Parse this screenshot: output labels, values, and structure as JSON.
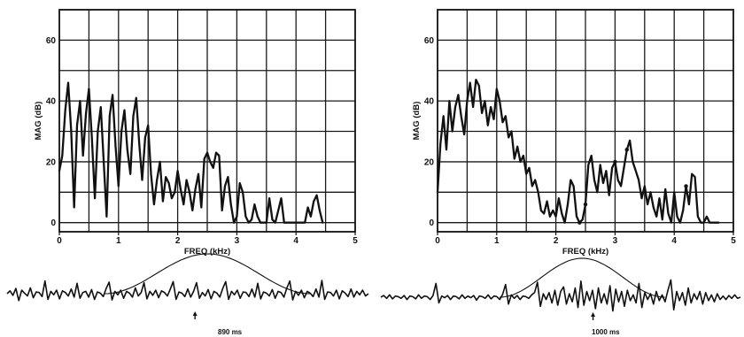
{
  "chart_data": [
    {
      "type": "line",
      "xlabel": "FREQ (kHz)",
      "ylabel": "MAG (dB)",
      "xlim": [
        0,
        5
      ],
      "ylim": [
        -3,
        70
      ],
      "x_ticks": [
        "0",
        "1",
        "2",
        "3",
        "4",
        "5"
      ],
      "y_ticks": [
        "0",
        "20",
        "40",
        "60"
      ],
      "grid": true,
      "series": [
        {
          "x": [
            0,
            0.05,
            0.1,
            0.15,
            0.2,
            0.25,
            0.3,
            0.35,
            0.4,
            0.45,
            0.5,
            0.55,
            0.6,
            0.65,
            0.7,
            0.75,
            0.8,
            0.85,
            0.9,
            0.95,
            1.0,
            1.05,
            1.1,
            1.15,
            1.2,
            1.25,
            1.3,
            1.35,
            1.4,
            1.45,
            1.5,
            1.55,
            1.6,
            1.65,
            1.7,
            1.75,
            1.8,
            1.85,
            1.9,
            1.95,
            2.0,
            2.05,
            2.1,
            2.15,
            2.2,
            2.25,
            2.3,
            2.35,
            2.4,
            2.45,
            2.5,
            2.55,
            2.6,
            2.65,
            2.7,
            2.75,
            2.8,
            2.85,
            2.9,
            2.95,
            3.0,
            3.05,
            3.1,
            3.15,
            3.2,
            3.25,
            3.3,
            3.35,
            3.4,
            3.45,
            3.5,
            3.55,
            3.6,
            3.65,
            3.7,
            3.75,
            3.8,
            3.85,
            3.9,
            3.95,
            4.0,
            4.05,
            4.1,
            4.15,
            4.2,
            4.25,
            4.3,
            4.35,
            4.4,
            4.45
          ],
          "y": [
            17,
            22,
            37,
            46,
            30,
            5,
            32,
            40,
            22,
            36,
            44,
            28,
            8,
            30,
            38,
            20,
            2,
            35,
            42,
            25,
            12,
            30,
            37,
            24,
            16,
            35,
            41,
            26,
            14,
            28,
            32,
            16,
            6,
            14,
            20,
            7,
            15,
            13,
            8,
            10,
            17,
            11,
            6,
            14,
            10,
            4,
            11,
            16,
            5,
            21,
            23,
            20,
            18,
            23,
            22,
            4,
            12,
            15,
            6,
            0,
            2,
            13,
            10,
            2,
            0,
            1,
            6,
            2,
            0,
            0,
            0,
            8,
            1,
            0,
            4,
            8,
            0,
            0,
            0,
            0,
            0,
            0,
            0,
            0,
            5,
            2,
            7,
            9,
            4,
            0
          ]
        }
      ],
      "time_marker": "890 ms"
    },
    {
      "type": "line",
      "xlabel": "FREQ (kHz)",
      "ylabel": "MAG (dB)",
      "xlim": [
        0,
        5
      ],
      "ylim": [
        -3,
        70
      ],
      "x_ticks": [
        "0",
        "1",
        "2",
        "3",
        "4",
        "5"
      ],
      "y_ticks": [
        "0",
        "20",
        "40",
        "60"
      ],
      "grid": true,
      "series": [
        {
          "x": [
            0,
            0.05,
            0.1,
            0.15,
            0.2,
            0.25,
            0.3,
            0.35,
            0.4,
            0.45,
            0.5,
            0.55,
            0.6,
            0.65,
            0.7,
            0.75,
            0.8,
            0.85,
            0.9,
            0.95,
            1.0,
            1.05,
            1.1,
            1.15,
            1.2,
            1.25,
            1.3,
            1.35,
            1.4,
            1.45,
            1.5,
            1.55,
            1.6,
            1.65,
            1.7,
            1.75,
            1.8,
            1.85,
            1.9,
            1.95,
            2.0,
            2.05,
            2.1,
            2.15,
            2.2,
            2.25,
            2.3,
            2.35,
            2.4,
            2.45,
            2.5,
            2.55,
            2.6,
            2.65,
            2.7,
            2.75,
            2.8,
            2.85,
            2.9,
            2.95,
            3.0,
            3.05,
            3.1,
            3.15,
            3.2,
            3.25,
            3.3,
            3.35,
            3.4,
            3.45,
            3.5,
            3.55,
            3.6,
            3.65,
            3.7,
            3.75,
            3.8,
            3.85,
            3.9,
            3.95,
            4.0,
            4.05,
            4.1,
            4.15,
            4.2,
            4.25,
            4.3,
            4.35,
            4.4,
            4.45,
            4.5,
            4.55,
            4.6,
            4.65,
            4.7,
            4.75
          ],
          "y": [
            10,
            26,
            35,
            24,
            40,
            30,
            38,
            42,
            35,
            29,
            40,
            46,
            38,
            47,
            45,
            36,
            40,
            32,
            38,
            34,
            44,
            40,
            33,
            35,
            28,
            30,
            21,
            25,
            20,
            22,
            16,
            18,
            12,
            14,
            10,
            4,
            3,
            7,
            2,
            4,
            2,
            8,
            3,
            0,
            6,
            14,
            12,
            2,
            0,
            1,
            6,
            19,
            22,
            14,
            10,
            19,
            13,
            17,
            9,
            18,
            20,
            14,
            12,
            18,
            24,
            27,
            20,
            17,
            14,
            8,
            12,
            6,
            10,
            5,
            2,
            8,
            1,
            11,
            3,
            0,
            10,
            2,
            0,
            4,
            12,
            6,
            16,
            15,
            2,
            0,
            0,
            2,
            0,
            0,
            0,
            0
          ],
          "highlight_x": [
            2.4,
            2.5,
            3.0,
            3.2,
            4.2
          ]
        }
      ],
      "time_marker": "1000 ms"
    }
  ],
  "waveforms": [
    {
      "trace": [
        0,
        0.25,
        -0.15,
        0.45,
        -0.6,
        0.3,
        0.05,
        -0.2,
        0.5,
        -0.35,
        0.15,
        0.1,
        -0.25,
        1.1,
        -0.5,
        0.2,
        -0.1,
        0.3,
        -0.45,
        0.25,
        0.1,
        -0.2,
        0.4,
        -0.3,
        0.9,
        -0.4,
        0.1,
        0.2,
        -0.3,
        0.35,
        -0.5,
        0.15,
        0.05,
        -0.25,
        0.45,
        1.0,
        -0.55,
        0.2,
        -0.1,
        0.3,
        -0.4,
        0.2,
        0.05,
        -0.3,
        0.5,
        -0.2,
        0.1,
        0.95,
        -0.45,
        0.2,
        -0.15,
        0.3,
        -0.35,
        0.25,
        0.1,
        -0.2,
        0.4,
        1.05,
        -0.5,
        0.15,
        0.05,
        -0.25,
        0.4,
        -0.3,
        0.2,
        0.95,
        -0.4,
        0.1,
        -0.2,
        0.35,
        -0.45,
        0.2,
        0.05,
        -0.3,
        0.45,
        1.05,
        -0.5,
        0.2,
        -0.1,
        0.3,
        -0.4,
        0.15,
        0.1,
        -0.25,
        0.4,
        -0.3,
        0.9,
        -0.45,
        0.15,
        0.05,
        -0.2,
        0.35,
        -0.4,
        0.2,
        0.1,
        -0.3,
        0.5,
        1.1,
        -0.55,
        0.2,
        -0.15,
        0.3,
        -0.35,
        0.2,
        0.05,
        -0.25,
        0.4,
        -0.3,
        1.15,
        -0.5,
        0.15,
        0.1,
        -0.2,
        0.3,
        -0.45,
        0.25,
        0.05,
        -0.25,
        0.4,
        -0.3,
        0.2,
        -0.1,
        0.3,
        -0.2,
        0
      ],
      "envelope": {
        "start": 0.27,
        "end": 0.84,
        "peak": 1.0
      },
      "marker": 0.52,
      "marker_label": "890 ms"
    },
    {
      "trace": [
        0,
        0.15,
        -0.1,
        0.2,
        -0.15,
        0.1,
        0.05,
        -0.1,
        0.15,
        -0.2,
        0.1,
        0.05,
        -0.15,
        0.2,
        -0.1,
        0.1,
        0.05,
        -0.2,
        0.15,
        1.2,
        -0.5,
        0.1,
        -0.05,
        0.15,
        -0.2,
        0.1,
        0.05,
        -0.15,
        0.2,
        -0.1,
        0.1,
        -0.05,
        0.15,
        -0.25,
        0.1,
        0.05,
        -0.1,
        0.2,
        -0.15,
        0.1,
        0.05,
        -0.2,
        0.25,
        1.1,
        -0.6,
        0.2,
        -0.1,
        0.15,
        -0.2,
        0.1,
        0.05,
        -0.1,
        0.2,
        0.4,
        1.3,
        -0.8,
        0.3,
        -0.2,
        0.4,
        -0.5,
        0.6,
        -0.7,
        0.5,
        0.9,
        -0.6,
        0.3,
        -0.4,
        0.8,
        -0.9,
        1.4,
        -0.7,
        0.5,
        -0.3,
        0.6,
        -1.0,
        0.8,
        -0.5,
        0.3,
        -0.6,
        1.0,
        -1.2,
        0.7,
        -0.4,
        0.5,
        -0.8,
        0.6,
        -0.3,
        0.2,
        -0.5,
        1.2,
        -0.9,
        0.4,
        -0.2,
        0.3,
        -0.6,
        0.5,
        -0.3,
        0.2,
        -0.4,
        0.6,
        1.5,
        -1.1,
        0.5,
        -0.3,
        0.4,
        -0.7,
        0.8,
        -0.5,
        0.3,
        -0.2,
        0.5,
        -0.6,
        0.4,
        -0.3,
        0.2,
        -0.4,
        0.3,
        -0.2,
        0.1,
        -0.2,
        0.15,
        -0.1,
        0.2,
        -0.1,
        0
      ],
      "envelope": {
        "start": 0.33,
        "end": 0.79,
        "peak": 1.0
      },
      "marker": 0.59,
      "marker_label": "1000 ms"
    }
  ]
}
